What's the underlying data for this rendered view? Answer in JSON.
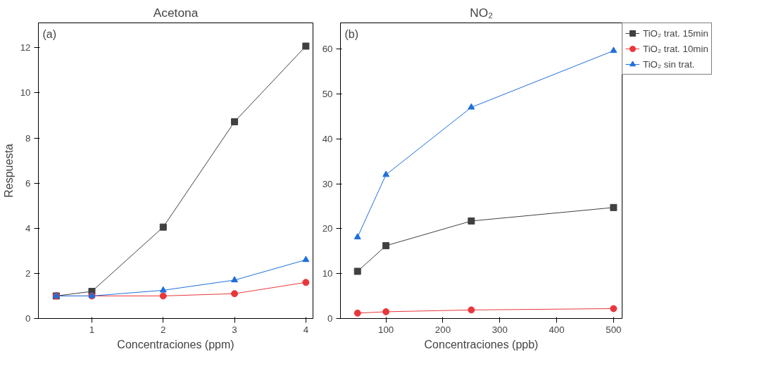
{
  "chart_data": [
    {
      "type": "line",
      "title": "Acetona",
      "annotations": [
        "(a)"
      ],
      "xlabel": "Concentraciones (ppm)",
      "ylabel": "Respuesta",
      "x": [
        0.5,
        1,
        2,
        3,
        4
      ],
      "xlim": [
        0.25,
        4.1
      ],
      "ylim": [
        0,
        13.1
      ],
      "xticks": [
        1,
        2,
        3,
        4
      ],
      "yticks": [
        0,
        2,
        4,
        6,
        8,
        10,
        12
      ],
      "grid": false,
      "legend": false,
      "series": [
        {
          "color": "#404040",
          "marker": "square",
          "values": [
            1.0,
            1.2,
            4.05,
            8.72,
            12.07
          ]
        },
        {
          "color": "#e8373b",
          "marker": "circle",
          "values": [
            1.0,
            1.0,
            1.0,
            1.1,
            1.6
          ]
        },
        {
          "color": "#1f6fdc",
          "marker": "triangle",
          "values": [
            1.0,
            1.0,
            1.25,
            1.7,
            2.6
          ]
        }
      ]
    },
    {
      "type": "line",
      "title": "NO₂",
      "annotations": [
        "(b)"
      ],
      "xlabel": "Concentraciones (ppb)",
      "x": [
        50,
        100,
        250,
        500
      ],
      "xlim": [
        20,
        515
      ],
      "ylim": [
        0,
        65.8
      ],
      "xticks": [
        100,
        200,
        300,
        400,
        500
      ],
      "yticks": [
        0,
        10,
        20,
        30,
        40,
        50,
        60
      ],
      "grid": false,
      "legend": "right",
      "series": [
        {
          "name": "TiO₂ trat. 15min",
          "color": "#404040",
          "marker": "square",
          "values": [
            10.5,
            16.2,
            21.7,
            24.7
          ]
        },
        {
          "name": "TiO₂ trat. 10min",
          "color": "#e8373b",
          "marker": "circle",
          "values": [
            1.2,
            1.5,
            1.9,
            2.2
          ]
        },
        {
          "name": "TiO₂ sin trat.",
          "color": "#1f6fdc",
          "marker": "triangle",
          "values": [
            18.1,
            32.0,
            47.0,
            59.6
          ]
        }
      ]
    }
  ]
}
